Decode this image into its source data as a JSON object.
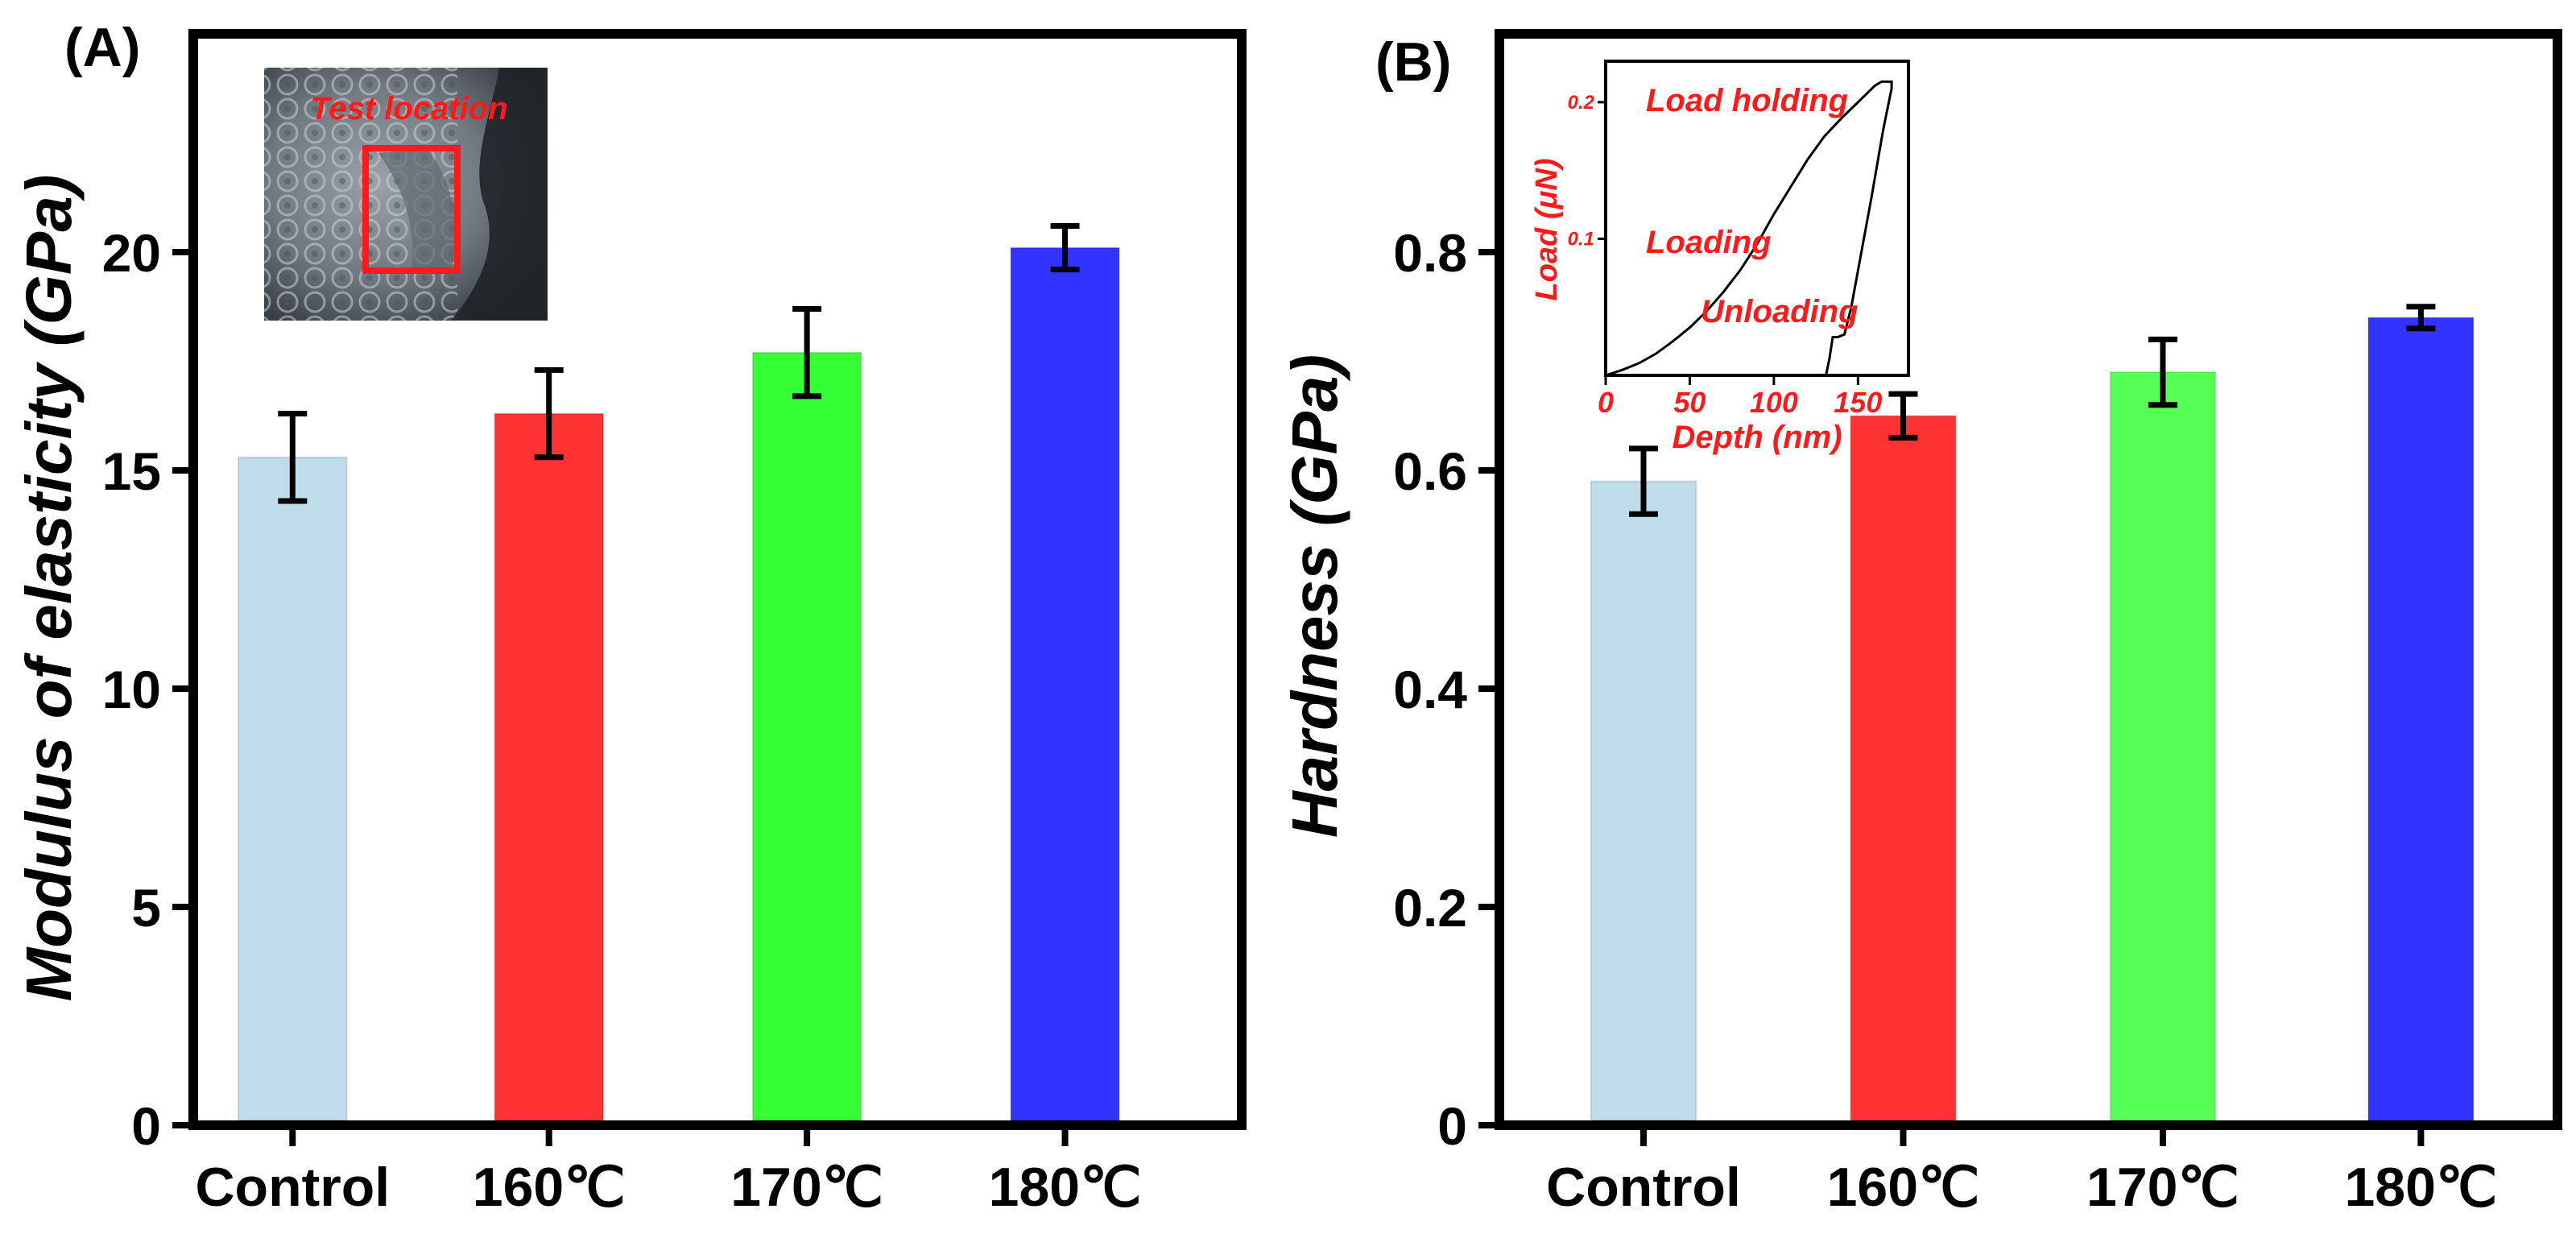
{
  "chart_data": [
    {
      "type": "bar",
      "panel_label": "(A)",
      "ylabel": "Modulus of elasticity (GPa)",
      "xlabel": "",
      "categories": [
        "Control",
        "160℃",
        "170℃",
        "180℃"
      ],
      "values": [
        15.3,
        16.3,
        17.7,
        20.1
      ],
      "errors": [
        1.0,
        1.0,
        1.0,
        0.5
      ],
      "colors": [
        "#bfdcea",
        "#ff3333",
        "#33ff33",
        "#3333ff"
      ],
      "ylim": [
        0,
        25
      ],
      "yticks": [
        0,
        5,
        10,
        15,
        20
      ],
      "ytick_labels": [
        "0",
        "5",
        "10",
        "15",
        "20"
      ],
      "inset": {
        "kind": "micrograph",
        "caption": "Test location"
      }
    },
    {
      "type": "bar",
      "panel_label": "(B)",
      "ylabel": "Hardness (GPa)",
      "xlabel": "",
      "categories": [
        "Control",
        "160℃",
        "170℃",
        "180℃"
      ],
      "values": [
        0.59,
        0.65,
        0.69,
        0.74
      ],
      "errors": [
        0.03,
        0.02,
        0.03,
        0.01
      ],
      "colors": [
        "#bfdcea",
        "#ff3333",
        "#55ff55",
        "#3333ff"
      ],
      "ylim": [
        0,
        1.0
      ],
      "yticks": [
        0,
        0.2,
        0.4,
        0.6,
        0.8
      ],
      "ytick_labels": [
        "0",
        "0.2",
        "0.4",
        "0.6",
        "0.8"
      ],
      "inset": {
        "kind": "line",
        "xlabel": "Depth (nm)",
        "ylabel": "Load (μN)",
        "xlim": [
          0,
          180
        ],
        "ylim": [
          0,
          0.23
        ],
        "xticks": [
          0,
          50,
          100,
          150
        ],
        "xtick_labels": [
          "0",
          "50",
          "100",
          "150"
        ],
        "yticks": [
          0.1,
          0.2
        ],
        "ytick_labels": [
          "0.1",
          "0.2"
        ],
        "annotations": [
          "Load holding",
          "Loading",
          "Unloading"
        ],
        "curve": [
          [
            0,
            0.0
          ],
          [
            10,
            0.004
          ],
          [
            20,
            0.009
          ],
          [
            30,
            0.016
          ],
          [
            40,
            0.025
          ],
          [
            50,
            0.035
          ],
          [
            60,
            0.047
          ],
          [
            70,
            0.061
          ],
          [
            80,
            0.077
          ],
          [
            90,
            0.096
          ],
          [
            100,
            0.118
          ],
          [
            110,
            0.138
          ],
          [
            120,
            0.158
          ],
          [
            130,
            0.175
          ],
          [
            140,
            0.188
          ],
          [
            150,
            0.2
          ],
          [
            160,
            0.212
          ],
          [
            164,
            0.215
          ],
          [
            170,
            0.215
          ],
          [
            170,
            0.21
          ],
          [
            165,
            0.18
          ],
          [
            158,
            0.13
          ],
          [
            152,
            0.09
          ],
          [
            146,
            0.05
          ],
          [
            142,
            0.03
          ],
          [
            138,
            0.028
          ],
          [
            135,
            0.028
          ],
          [
            133,
            0.012
          ],
          [
            131,
            0.0
          ]
        ]
      }
    }
  ]
}
